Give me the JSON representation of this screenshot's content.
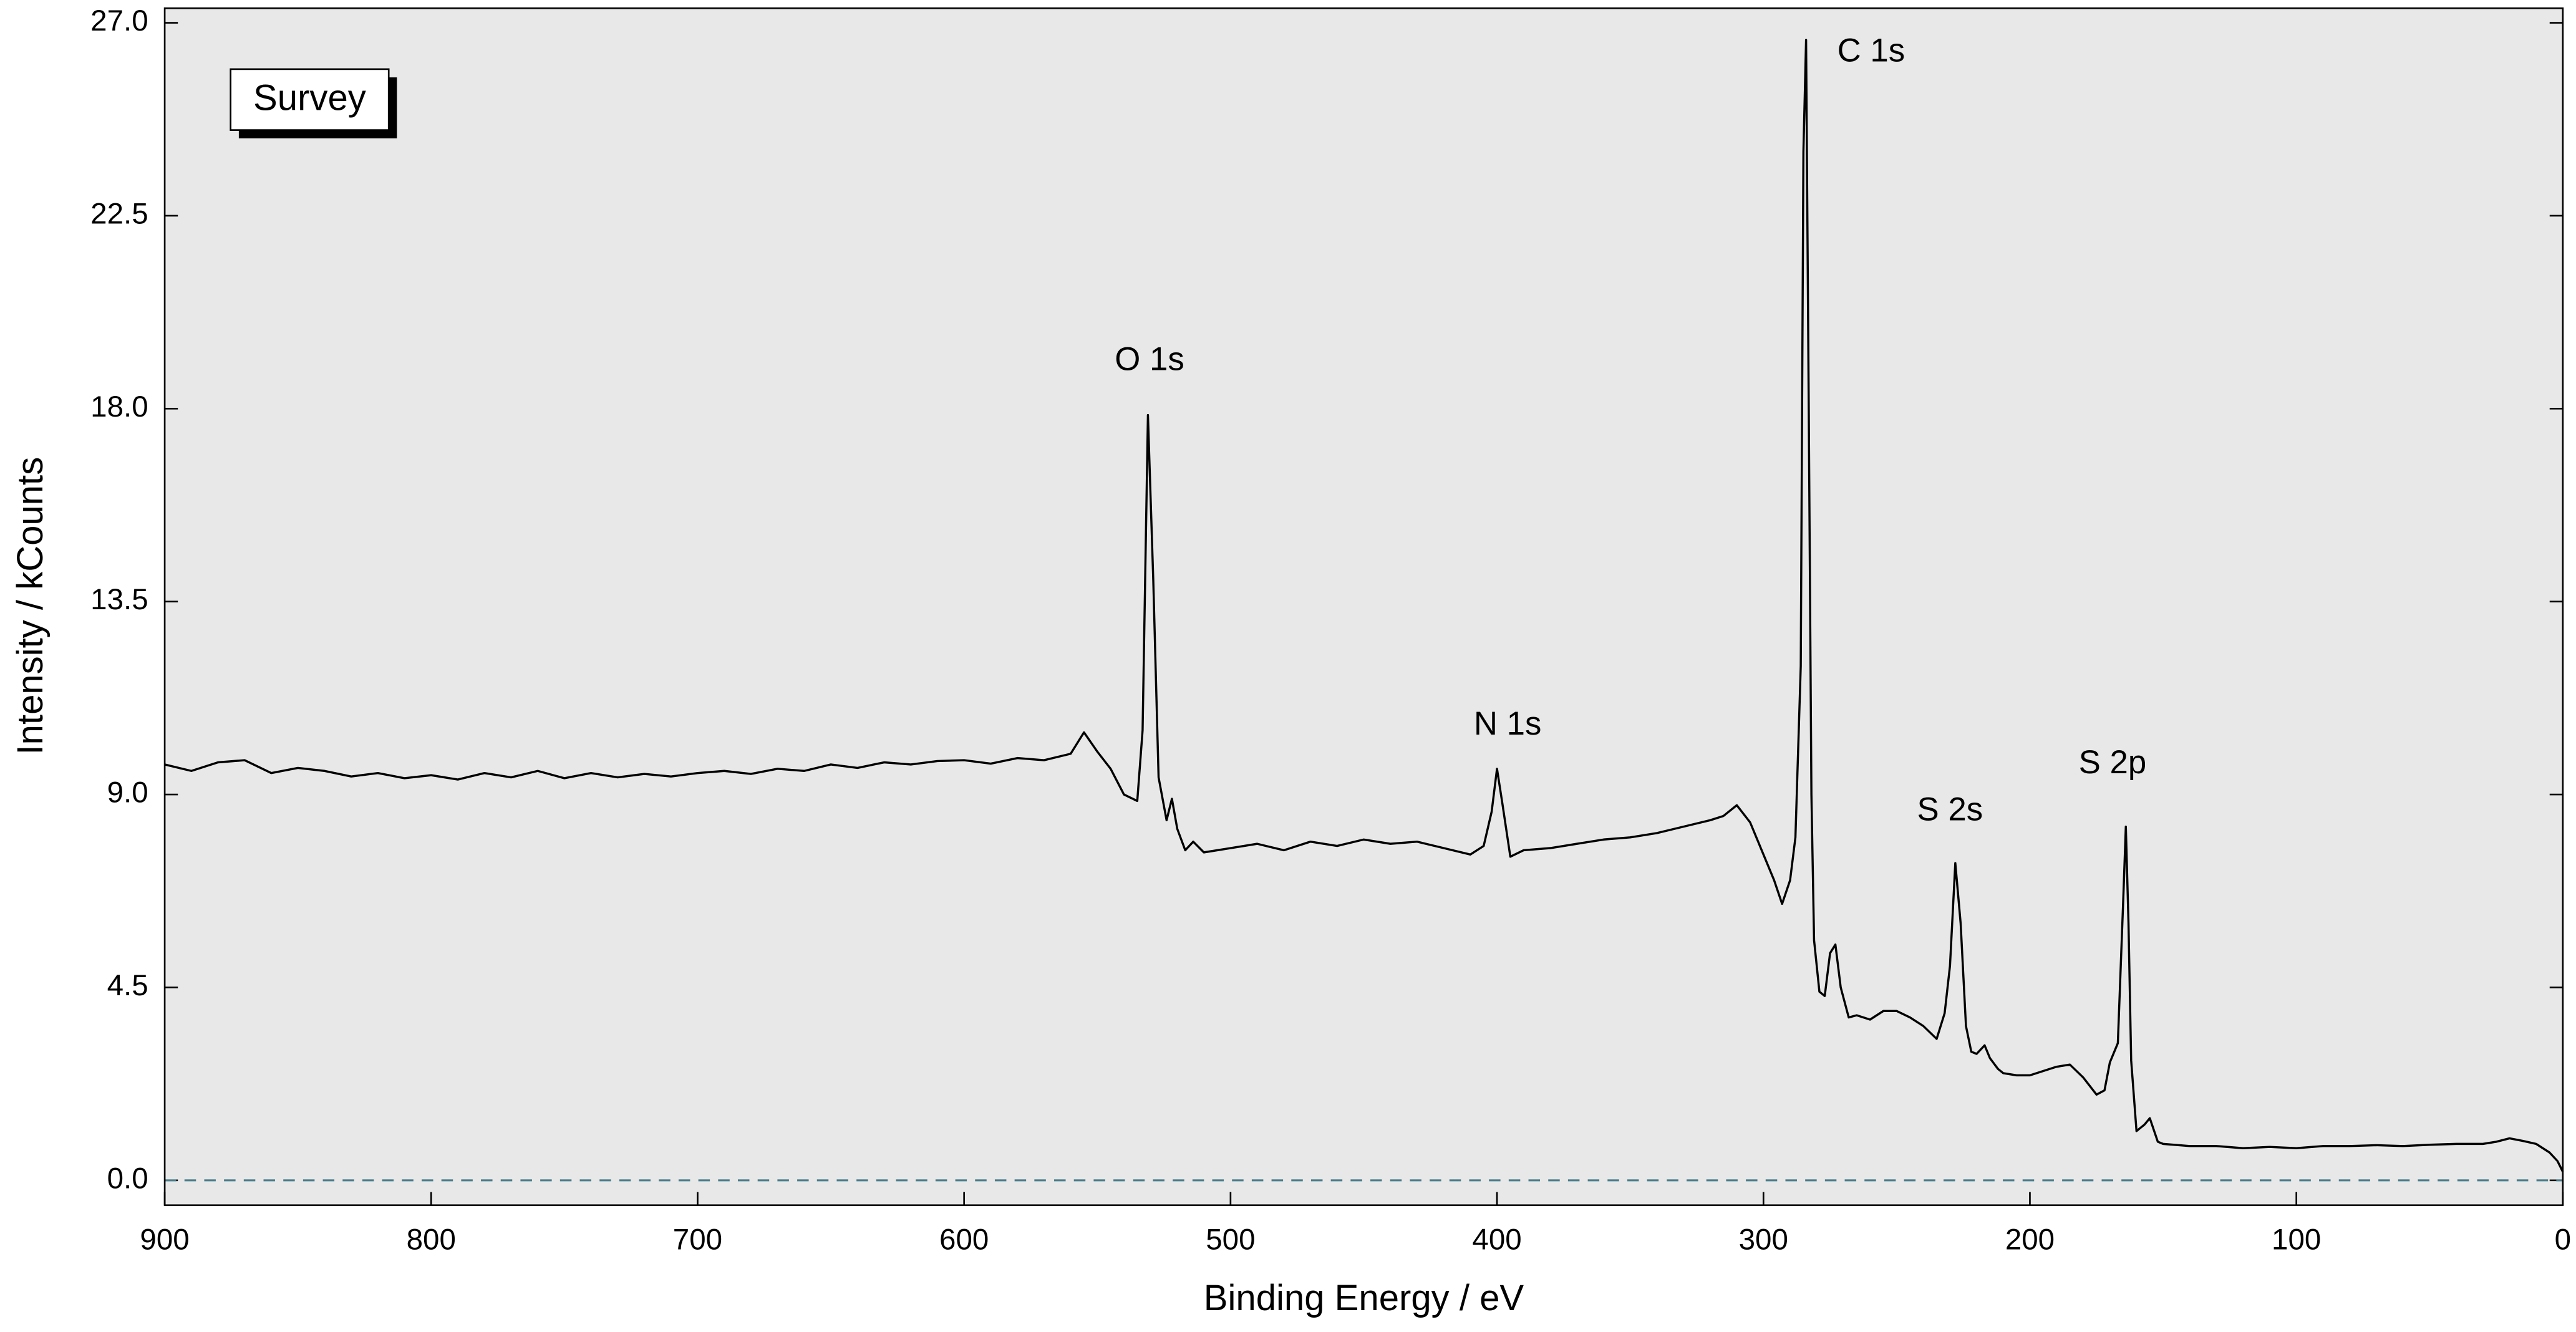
{
  "chart_data": {
    "type": "line",
    "xlabel": "Binding Energy / eV",
    "ylabel": "Intensity / kCounts",
    "xlim": [
      900,
      0
    ],
    "ylim": [
      -0.58,
      27.34
    ],
    "xticks": [
      900,
      800,
      700,
      600,
      500,
      400,
      300,
      200,
      100,
      0
    ],
    "yticks": [
      {
        "value": 0,
        "label": "0.0"
      },
      4.5,
      {
        "value": 9,
        "label": "9.0"
      },
      13.5,
      {
        "value": 18,
        "label": "18.0"
      },
      22.5,
      {
        "value": 27,
        "label": "27.0"
      }
    ],
    "baseline": 0,
    "legend": "upper left",
    "x": [
      900,
      890,
      880,
      870,
      860,
      850,
      840,
      830,
      820,
      810,
      800,
      790,
      780,
      770,
      760,
      750,
      740,
      730,
      720,
      710,
      700,
      690,
      680,
      670,
      660,
      650,
      640,
      630,
      620,
      610,
      600,
      590,
      580,
      570,
      560,
      555,
      550,
      545,
      540,
      535,
      533,
      531,
      529,
      527,
      524,
      522,
      520,
      517,
      514,
      510,
      500,
      490,
      480,
      470,
      460,
      450,
      440,
      430,
      420,
      410,
      405,
      402,
      400,
      398,
      395,
      390,
      380,
      370,
      360,
      350,
      340,
      330,
      320,
      315,
      310,
      305,
      300,
      296,
      293,
      290,
      288,
      286,
      285,
      284,
      283,
      282,
      281,
      279,
      277,
      275,
      273,
      271,
      268,
      265,
      260,
      255,
      250,
      245,
      240,
      235,
      232,
      230,
      228,
      226,
      224,
      222,
      220,
      217,
      215,
      212,
      210,
      205,
      200,
      195,
      190,
      185,
      180,
      175,
      172,
      170,
      167,
      165,
      164,
      163,
      162,
      160,
      157,
      155,
      152,
      150,
      140,
      130,
      120,
      110,
      100,
      90,
      80,
      70,
      60,
      50,
      40,
      30,
      25,
      20,
      15,
      10,
      5,
      2,
      0
    ],
    "series": [
      {
        "name": "Survey",
        "color": "#000000",
        "values": [
          9.7,
          9.55,
          9.75,
          9.8,
          9.5,
          9.62,
          9.55,
          9.42,
          9.5,
          9.38,
          9.45,
          9.35,
          9.5,
          9.4,
          9.55,
          9.38,
          9.5,
          9.4,
          9.48,
          9.42,
          9.5,
          9.55,
          9.48,
          9.6,
          9.55,
          9.7,
          9.62,
          9.75,
          9.7,
          9.78,
          9.8,
          9.72,
          9.85,
          9.8,
          9.95,
          10.45,
          10.0,
          9.6,
          9.0,
          8.85,
          10.5,
          17.85,
          14.0,
          9.4,
          8.4,
          8.9,
          8.2,
          7.7,
          7.9,
          7.65,
          7.75,
          7.85,
          7.7,
          7.9,
          7.8,
          7.95,
          7.85,
          7.9,
          7.75,
          7.6,
          7.8,
          8.6,
          9.6,
          8.8,
          7.55,
          7.7,
          7.75,
          7.85,
          7.95,
          8.0,
          8.1,
          8.25,
          8.4,
          8.5,
          8.75,
          8.35,
          7.6,
          7.0,
          6.45,
          7.0,
          8.0,
          12.0,
          24.0,
          26.6,
          18.0,
          9.0,
          5.6,
          4.4,
          4.3,
          5.3,
          5.5,
          4.5,
          3.8,
          3.85,
          3.75,
          3.95,
          3.95,
          3.8,
          3.6,
          3.3,
          3.9,
          5.0,
          7.4,
          6.0,
          3.6,
          3.0,
          2.95,
          3.15,
          2.85,
          2.6,
          2.5,
          2.45,
          2.45,
          2.55,
          2.65,
          2.7,
          2.4,
          2.0,
          2.1,
          2.75,
          3.2,
          6.5,
          8.25,
          6.0,
          2.8,
          1.15,
          1.3,
          1.45,
          0.9,
          0.85,
          0.8,
          0.8,
          0.75,
          0.78,
          0.75,
          0.8,
          0.8,
          0.82,
          0.8,
          0.83,
          0.85,
          0.85,
          0.9,
          0.98,
          0.92,
          0.85,
          0.65,
          0.45,
          0.2
        ]
      }
    ],
    "annotations": [
      {
        "text": "O 1s",
        "x": 530.4,
        "y": 19.1
      },
      {
        "text": "N 1s",
        "x": 396,
        "y": 10.6
      },
      {
        "text": "C 1s",
        "x": 259.6,
        "y": 26.3
      },
      {
        "text": "S 2s",
        "x": 230,
        "y": 8.6
      },
      {
        "text": "S 2p",
        "x": 169,
        "y": 9.7
      }
    ]
  }
}
